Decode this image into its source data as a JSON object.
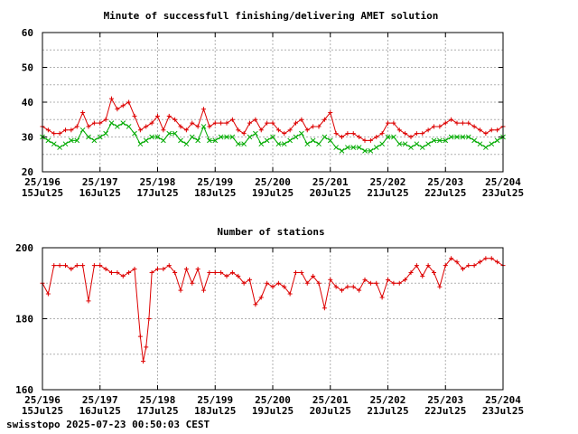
{
  "footer": "swisstopo 2025-07-23 00:50:03 CEST",
  "colors": {
    "red": "#dd0000",
    "green": "#00aa00",
    "grid": "#b0b0b0",
    "axis": "#000000"
  },
  "chart_data": [
    {
      "type": "line",
      "title": "Minute of successfull finishing/delivering AMET solution",
      "xlabel": "",
      "ylabel": "",
      "ylim": [
        20,
        60
      ],
      "yticks": [
        20,
        30,
        40,
        50,
        60
      ],
      "xlim": [
        196,
        204
      ],
      "xticks": [
        {
          "top": "25/196",
          "bottom": "15Jul25"
        },
        {
          "top": "25/197",
          "bottom": "16Jul25"
        },
        {
          "top": "25/198",
          "bottom": "17Jul25"
        },
        {
          "top": "25/199",
          "bottom": "18Jul25"
        },
        {
          "top": "25/200",
          "bottom": "19Jul25"
        },
        {
          "top": "25/201",
          "bottom": "20Jul25"
        },
        {
          "top": "25/202",
          "bottom": "21Jul25"
        },
        {
          "top": "25/203",
          "bottom": "22Jul25"
        },
        {
          "top": "25/204",
          "bottom": "23Jul25"
        }
      ],
      "grid": true,
      "series": [
        {
          "color": "#dd0000",
          "marker": "+",
          "x": [
            196.0,
            196.1,
            196.2,
            196.3,
            196.4,
            196.5,
            196.6,
            196.7,
            196.8,
            196.9,
            197.0,
            197.1,
            197.2,
            197.3,
            197.4,
            197.5,
            197.6,
            197.7,
            197.8,
            197.9,
            198.0,
            198.1,
            198.2,
            198.3,
            198.4,
            198.5,
            198.6,
            198.7,
            198.8,
            198.9,
            199.0,
            199.1,
            199.2,
            199.3,
            199.4,
            199.5,
            199.6,
            199.7,
            199.8,
            199.9,
            200.0,
            200.1,
            200.2,
            200.3,
            200.4,
            200.5,
            200.6,
            200.7,
            200.8,
            200.9,
            201.0,
            201.1,
            201.2,
            201.3,
            201.4,
            201.5,
            201.6,
            201.7,
            201.8,
            201.9,
            202.0,
            202.1,
            202.2,
            202.3,
            202.4,
            202.5,
            202.6,
            202.7,
            202.8,
            202.9,
            203.0,
            203.1,
            203.2,
            203.3,
            203.4,
            203.5,
            203.6,
            203.7,
            203.8,
            203.9,
            204.0
          ],
          "values": [
            33,
            32,
            31,
            31,
            32,
            32,
            33,
            37,
            33,
            34,
            34,
            35,
            41,
            38,
            39,
            40,
            36,
            32,
            33,
            34,
            36,
            32,
            36,
            35,
            33,
            32,
            34,
            33,
            38,
            33,
            34,
            34,
            34,
            35,
            32,
            31,
            34,
            35,
            32,
            34,
            34,
            32,
            31,
            32,
            34,
            35,
            32,
            33,
            33,
            35,
            37,
            31,
            30,
            31,
            31,
            30,
            29,
            29,
            30,
            31,
            34,
            34,
            32,
            31,
            30,
            31,
            31,
            32,
            33,
            33,
            34,
            35,
            34,
            34,
            34,
            33,
            32,
            31,
            32,
            32,
            33
          ]
        },
        {
          "color": "#00aa00",
          "marker": "x",
          "x": [
            196.0,
            196.1,
            196.2,
            196.3,
            196.4,
            196.5,
            196.6,
            196.7,
            196.8,
            196.9,
            197.0,
            197.1,
            197.2,
            197.3,
            197.4,
            197.5,
            197.6,
            197.7,
            197.8,
            197.9,
            198.0,
            198.1,
            198.2,
            198.3,
            198.4,
            198.5,
            198.6,
            198.7,
            198.8,
            198.9,
            199.0,
            199.1,
            199.2,
            199.3,
            199.4,
            199.5,
            199.6,
            199.7,
            199.8,
            199.9,
            200.0,
            200.1,
            200.2,
            200.3,
            200.4,
            200.5,
            200.6,
            200.7,
            200.8,
            200.9,
            201.0,
            201.1,
            201.2,
            201.3,
            201.4,
            201.5,
            201.6,
            201.7,
            201.8,
            201.9,
            202.0,
            202.1,
            202.2,
            202.3,
            202.4,
            202.5,
            202.6,
            202.7,
            202.8,
            202.9,
            203.0,
            203.1,
            203.2,
            203.3,
            203.4,
            203.5,
            203.6,
            203.7,
            203.8,
            203.9,
            204.0
          ],
          "values": [
            30,
            29,
            28,
            27,
            28,
            29,
            29,
            32,
            30,
            29,
            30,
            31,
            34,
            33,
            34,
            33,
            31,
            28,
            29,
            30,
            30,
            29,
            31,
            31,
            29,
            28,
            30,
            29,
            33,
            29,
            29,
            30,
            30,
            30,
            28,
            28,
            30,
            31,
            28,
            29,
            30,
            28,
            28,
            29,
            30,
            31,
            28,
            29,
            28,
            30,
            29,
            27,
            26,
            27,
            27,
            27,
            26,
            26,
            27,
            28,
            30,
            30,
            28,
            28,
            27,
            28,
            27,
            28,
            29,
            29,
            29,
            30,
            30,
            30,
            30,
            29,
            28,
            27,
            28,
            29,
            30
          ]
        }
      ]
    },
    {
      "type": "line",
      "title": "Number of stations",
      "xlabel": "",
      "ylabel": "",
      "ylim": [
        160,
        200
      ],
      "yticks": [
        160,
        180,
        200
      ],
      "xlim": [
        196,
        204
      ],
      "xticks": [
        {
          "top": "25/196",
          "bottom": "15Jul25"
        },
        {
          "top": "25/197",
          "bottom": "16Jul25"
        },
        {
          "top": "25/198",
          "bottom": "17Jul25"
        },
        {
          "top": "25/199",
          "bottom": "18Jul25"
        },
        {
          "top": "25/200",
          "bottom": "19Jul25"
        },
        {
          "top": "25/201",
          "bottom": "20Jul25"
        },
        {
          "top": "25/202",
          "bottom": "21Jul25"
        },
        {
          "top": "25/203",
          "bottom": "22Jul25"
        },
        {
          "top": "25/204",
          "bottom": "23Jul25"
        }
      ],
      "grid": true,
      "series": [
        {
          "color": "#dd0000",
          "marker": "+",
          "x": [
            196.0,
            196.1,
            196.2,
            196.3,
            196.4,
            196.5,
            196.6,
            196.7,
            196.8,
            196.9,
            197.0,
            197.1,
            197.2,
            197.3,
            197.4,
            197.5,
            197.6,
            197.7,
            197.75,
            197.8,
            197.85,
            197.9,
            198.0,
            198.1,
            198.2,
            198.3,
            198.4,
            198.5,
            198.6,
            198.7,
            198.8,
            198.9,
            199.0,
            199.1,
            199.2,
            199.3,
            199.4,
            199.5,
            199.6,
            199.7,
            199.8,
            199.9,
            200.0,
            200.1,
            200.2,
            200.3,
            200.4,
            200.5,
            200.6,
            200.7,
            200.8,
            200.9,
            201.0,
            201.1,
            201.2,
            201.3,
            201.4,
            201.5,
            201.6,
            201.7,
            201.8,
            201.9,
            202.0,
            202.1,
            202.2,
            202.3,
            202.4,
            202.5,
            202.6,
            202.7,
            202.8,
            202.9,
            203.0,
            203.1,
            203.2,
            203.3,
            203.4,
            203.5,
            203.6,
            203.7,
            203.8,
            203.9,
            204.0
          ],
          "values": [
            190,
            187,
            195,
            195,
            195,
            194,
            195,
            195,
            185,
            195,
            195,
            194,
            193,
            193,
            192,
            193,
            194,
            175,
            168,
            172,
            180,
            193,
            194,
            194,
            195,
            193,
            188,
            194,
            190,
            194,
            188,
            193,
            193,
            193,
            192,
            193,
            192,
            190,
            191,
            184,
            186,
            190,
            189,
            190,
            189,
            187,
            193,
            193,
            190,
            192,
            190,
            183,
            191,
            189,
            188,
            189,
            189,
            188,
            191,
            190,
            190,
            186,
            191,
            190,
            190,
            191,
            193,
            195,
            192,
            195,
            193,
            189,
            195,
            197,
            196,
            194,
            195,
            195,
            196,
            197,
            197,
            196,
            195
          ]
        }
      ]
    }
  ]
}
